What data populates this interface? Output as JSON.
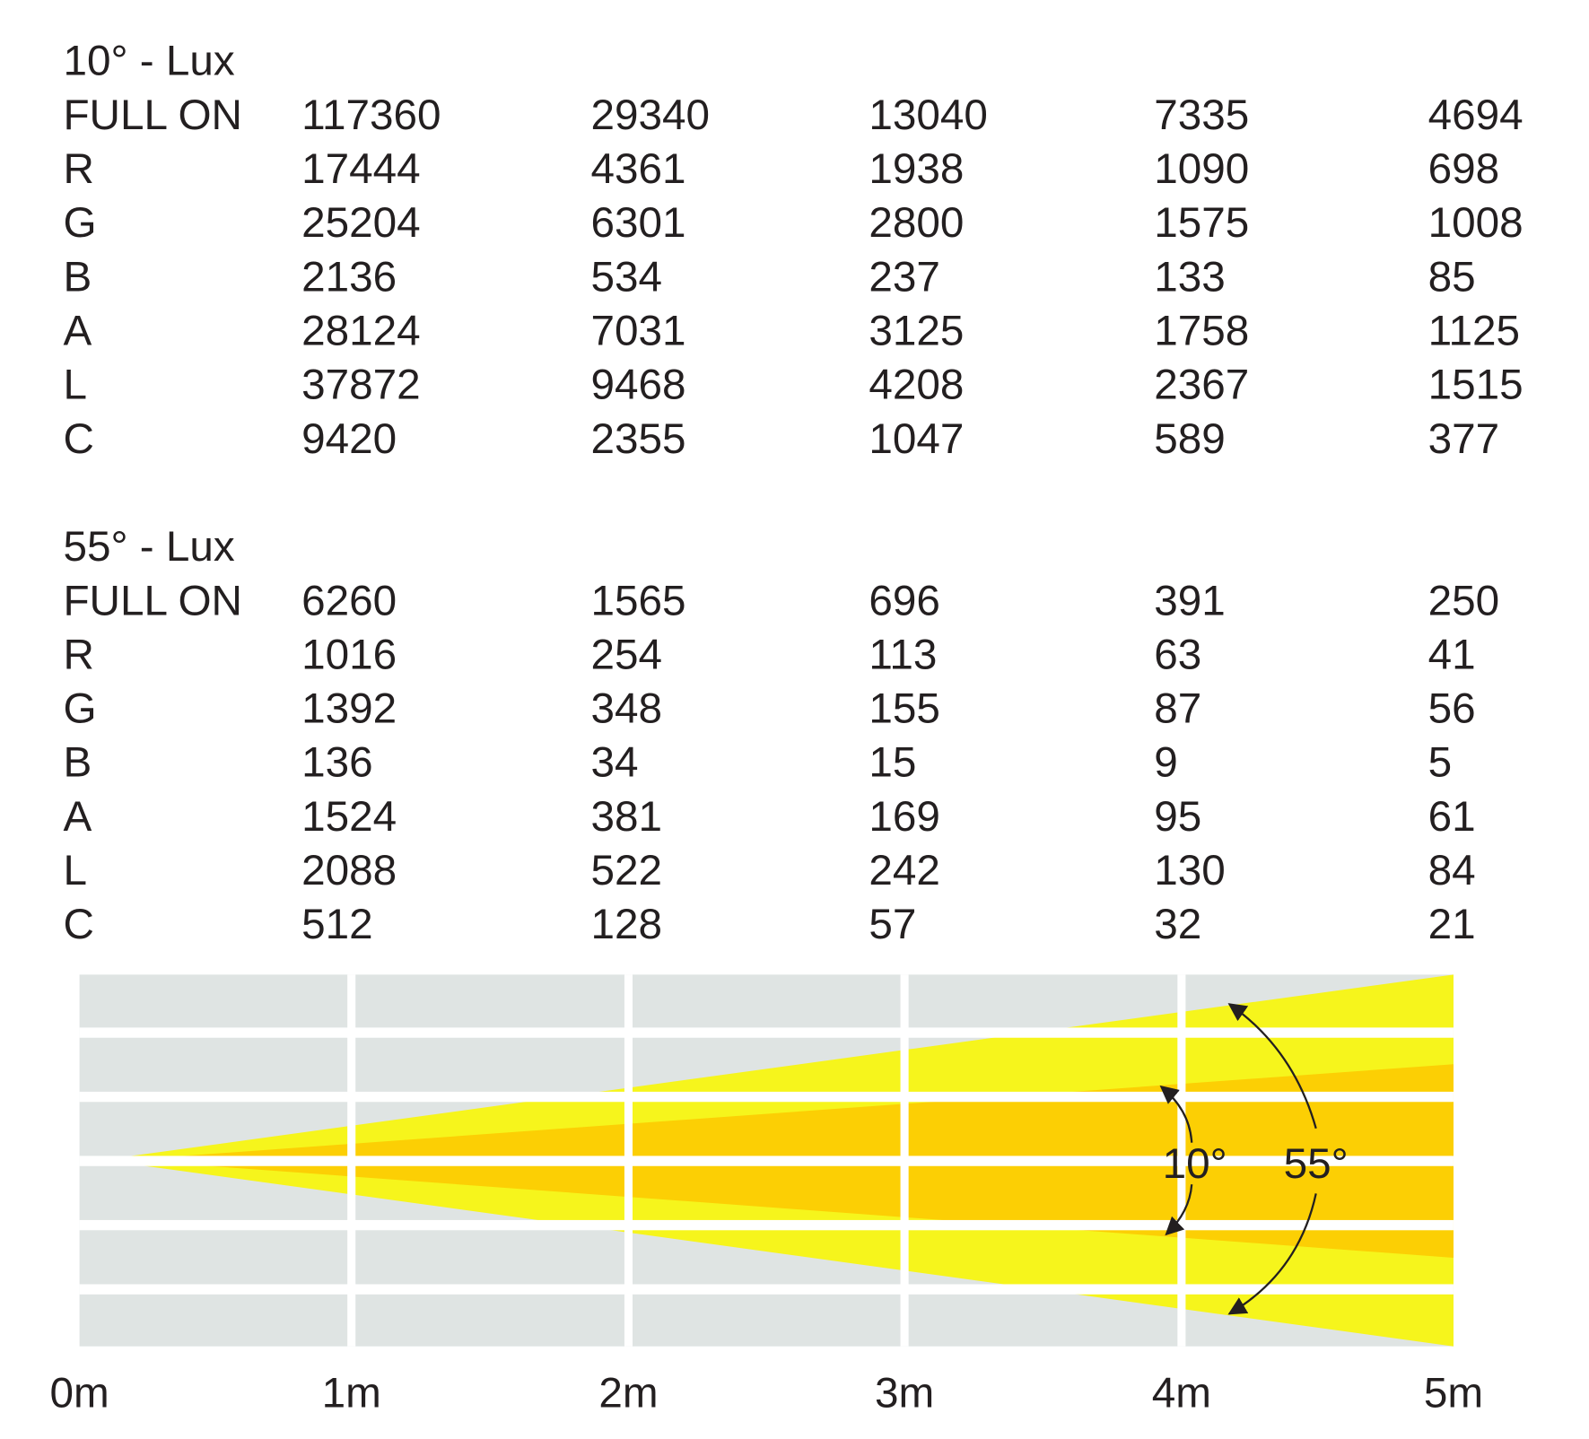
{
  "tables": [
    {
      "title": "10° - Lux",
      "rows": [
        {
          "label": "FULL ON",
          "values": [
            117360,
            29340,
            13040,
            7335,
            4694
          ]
        },
        {
          "label": "R",
          "values": [
            17444,
            4361,
            1938,
            1090,
            698
          ]
        },
        {
          "label": "G",
          "values": [
            25204,
            6301,
            2800,
            1575,
            1008
          ]
        },
        {
          "label": "B",
          "values": [
            2136,
            534,
            237,
            133,
            85
          ]
        },
        {
          "label": "A",
          "values": [
            28124,
            7031,
            3125,
            1758,
            1125
          ]
        },
        {
          "label": "L",
          "values": [
            37872,
            9468,
            4208,
            2367,
            1515
          ]
        },
        {
          "label": "C",
          "values": [
            9420,
            2355,
            1047,
            589,
            377
          ]
        }
      ]
    },
    {
      "title": "55° - Lux",
      "rows": [
        {
          "label": "FULL ON",
          "values": [
            6260,
            1565,
            696,
            391,
            250
          ]
        },
        {
          "label": "R",
          "values": [
            1016,
            254,
            113,
            63,
            41
          ]
        },
        {
          "label": "G",
          "values": [
            1392,
            348,
            155,
            87,
            56
          ]
        },
        {
          "label": "B",
          "values": [
            136,
            34,
            15,
            9,
            5
          ]
        },
        {
          "label": "A",
          "values": [
            1524,
            381,
            169,
            95,
            61
          ]
        },
        {
          "label": "L",
          "values": [
            2088,
            522,
            242,
            130,
            84
          ]
        },
        {
          "label": "C",
          "values": [
            512,
            128,
            57,
            32,
            21
          ]
        }
      ]
    }
  ],
  "diagram": {
    "distance_labels": [
      "0m",
      "1m",
      "2m",
      "3m",
      "4m",
      "5m"
    ],
    "angle_labels": [
      "10°",
      "55°"
    ]
  }
}
